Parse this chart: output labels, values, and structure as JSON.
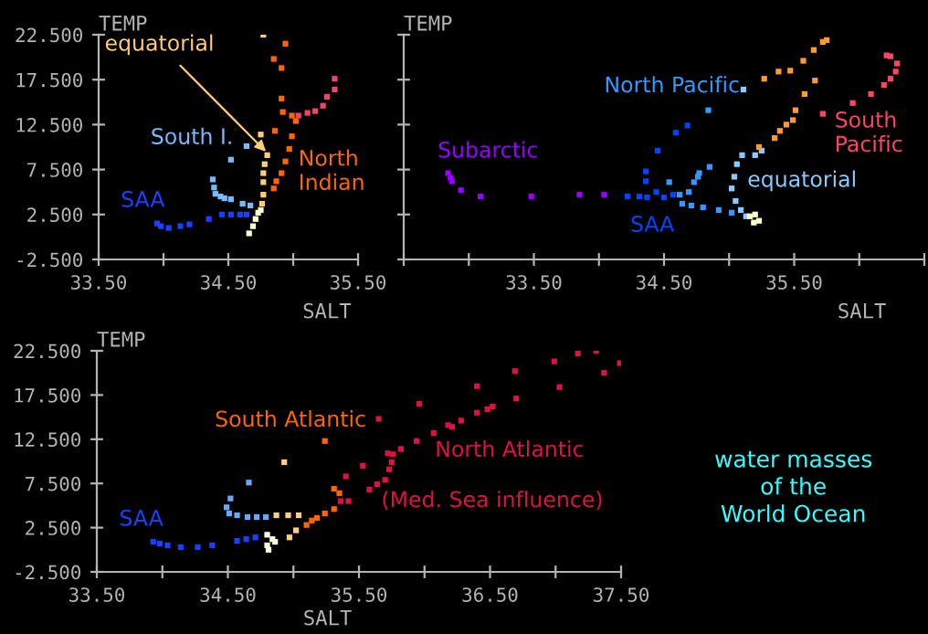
{
  "chart_data": [
    {
      "type": "scatter",
      "xlabel": "SALT",
      "ylabel": "TEMP",
      "marker": "square",
      "grid": false,
      "legend": false,
      "xlim": [
        33.5,
        35.5
      ],
      "xticks": [
        {
          "value": 33.5,
          "label": "33.50"
        },
        {
          "value": 34.0,
          "label": null
        },
        {
          "value": 34.5,
          "label": "34.50"
        },
        {
          "value": 35.0,
          "label": null
        },
        {
          "value": 35.5,
          "label": "35.50"
        }
      ],
      "ylim": [
        -2.5,
        22.5
      ],
      "yticks": [
        {
          "value": -2.5,
          "label": "-2.500"
        },
        {
          "value": 2.5,
          "label": "2.500"
        },
        {
          "value": 7.5,
          "label": "7.500"
        },
        {
          "value": 12.5,
          "label": "12.500"
        },
        {
          "value": 17.5,
          "label": "17.500"
        },
        {
          "value": 22.5,
          "label": "22.500"
        }
      ],
      "series": [
        {
          "color": "#ffcc77",
          "x": [
            34.76,
            34.77,
            34.77,
            34.77,
            34.78,
            34.8,
            34.75,
            34.77
          ],
          "values": [
            3.7,
            4.7,
            6.1,
            7.1,
            8.1,
            9.1,
            11.4,
            22.5
          ]
        },
        {
          "color": "#77bbff",
          "x": [
            34.38,
            34.39,
            34.4,
            34.44,
            34.47,
            34.52,
            34.61,
            34.67,
            34.52,
            34.64
          ],
          "values": [
            6.4,
            5.5,
            4.8,
            4.5,
            4.3,
            4.2,
            3.7,
            3.5,
            8.6,
            10.1
          ]
        },
        {
          "color": "#1a40ff",
          "x": [
            33.95,
            33.98,
            34.04,
            34.13,
            34.2,
            34.35,
            34.45,
            34.52,
            34.59,
            34.64
          ],
          "values": [
            1.5,
            1.2,
            1.0,
            1.2,
            1.4,
            2.0,
            2.5,
            2.5,
            2.5,
            2.5
          ]
        },
        {
          "color": "#ff6600",
          "x": [
            34.85,
            34.87,
            34.91,
            34.94,
            34.97,
            34.99,
            35.02,
            34.99,
            34.92,
            34.91,
            34.91,
            34.85,
            34.94,
            34.86
          ],
          "values": [
            5.4,
            6.2,
            7.1,
            8.4,
            9.8,
            11.2,
            12.9,
            13.5,
            13.9,
            15.4,
            18.8,
            19.8,
            21.5,
            11.8
          ]
        },
        {
          "color": "#ffffcc",
          "x": [
            34.66,
            34.69,
            34.71,
            34.73,
            34.75
          ],
          "values": [
            0.4,
            1.2,
            2.0,
            2.7,
            3.0
          ]
        },
        {
          "color": "#ee4466",
          "x": [
            35.04,
            35.11,
            35.17,
            35.23,
            35.26,
            35.32,
            35.32
          ],
          "values": [
            13.5,
            13.8,
            14.0,
            14.6,
            15.6,
            16.4,
            17.6
          ]
        }
      ],
      "annotations": [
        {
          "text": "equatorial",
          "x": 34.79,
          "y": 9.5
        },
        "South I.",
        "SAA",
        "North\nIndian"
      ]
    },
    {
      "type": "scatter",
      "xlabel": "SALT",
      "ylabel": "TEMP",
      "marker": "square",
      "grid": false,
      "legend": false,
      "tick_labels": "x",
      "xlim": [
        32.5,
        36.5
      ],
      "xticks": [
        {
          "value": 32.5,
          "label": null
        },
        {
          "value": 33.0,
          "label": null
        },
        {
          "value": 33.5,
          "label": "33.50"
        },
        {
          "value": 34.0,
          "label": null
        },
        {
          "value": 34.5,
          "label": "34.50"
        },
        {
          "value": 35.0,
          "label": null
        },
        {
          "value": 35.5,
          "label": "35.50"
        },
        {
          "value": 36.0,
          "label": null
        },
        {
          "value": 36.5,
          "label": null
        }
      ],
      "ylim": [
        -2.5,
        22.5
      ],
      "yticks": [
        {
          "value": -2.5,
          "label": null
        },
        {
          "value": 2.5,
          "label": null
        },
        {
          "value": 7.5,
          "label": null
        },
        {
          "value": 12.5,
          "label": null
        },
        {
          "value": 17.5,
          "label": null
        },
        {
          "value": 22.5,
          "label": null
        }
      ],
      "series": [
        {
          "color": "#9900ff",
          "x": [
            32.84,
            32.86,
            32.87,
            32.94,
            33.09,
            33.48,
            33.85,
            34.04
          ],
          "values": [
            7.1,
            6.6,
            6.2,
            5.2,
            4.5,
            4.5,
            4.7,
            4.7
          ]
        },
        {
          "color": "#3399ff",
          "x": [
            34.54,
            34.57,
            34.62,
            34.69,
            34.73,
            34.76,
            34.77,
            34.85,
            34.84,
            34.64,
            34.71,
            34.8,
            34.92,
            35.02
          ],
          "values": [
            6.1,
            null,
            4.7,
            5.0,
            6.1,
            6.7,
            7.1,
            7.8,
            14.1,
            3.7,
            3.5,
            3.3,
            3.0,
            2.7
          ]
        },
        {
          "color": "#ff4466",
          "x": [
            35.72,
            35.95,
            36.09,
            36.19,
            36.24,
            36.28,
            36.29,
            36.24,
            36.21
          ],
          "values": [
            13.7,
            14.9,
            15.9,
            16.9,
            17.6,
            18.4,
            19.3,
            20.1,
            20.2
          ]
        },
        {
          "color": "#88ccff",
          "x": [
            35.13,
            35.09,
            35.05,
            35.02,
            35.04,
            35.06,
            35.1,
            35.11,
            35.2,
            35.25
          ],
          "values": [
            2.3,
            3.0,
            4.0,
            5.4,
            6.7,
            8.1,
            9.1,
            16.4,
            9.1,
            9.6
          ]
        },
        {
          "color": "#0044ff",
          "x": [
            34.22,
            34.31,
            34.37,
            34.44,
            34.36,
            34.36,
            34.45,
            34.59,
            34.68,
            34.5,
            34.57
          ],
          "values": [
            4.5,
            4.5,
            4.4,
            5.0,
            6.2,
            7.3,
            9.6,
            11.6,
            12.4,
            4.4,
            4.7
          ]
        },
        {
          "color": "#ffffcc",
          "x": [
            35.16,
            35.2,
            35.23,
            35.19
          ],
          "values": [
            2.3,
            2.5,
            1.8,
            1.6
          ]
        },
        {
          "color": "#ff9933",
          "x": [
            35.35,
            35.39,
            35.44,
            35.49,
            35.51,
            35.58,
            35.66,
            35.27,
            35.38,
            35.47,
            35.57,
            35.65,
            35.72,
            35.75,
            35.23
          ],
          "values": [
            11.0,
            11.8,
            12.5,
            13.0,
            14.1,
            15.9,
            17.4,
            17.6,
            18.4,
            18.5,
            19.6,
            20.8,
            21.7,
            21.9,
            10.0
          ]
        }
      ],
      "annotations": [
        "Subarctic",
        "North Pacific",
        "South\nPacific",
        "equatorial",
        "SAA"
      ]
    },
    {
      "type": "scatter",
      "xlabel": "SALT",
      "ylabel": "TEMP",
      "marker": "square",
      "grid": false,
      "legend": false,
      "xlim": [
        33.5,
        37.5
      ],
      "xticks": [
        {
          "value": 33.5,
          "label": "33.50"
        },
        {
          "value": 34.0,
          "label": null
        },
        {
          "value": 34.5,
          "label": "34.50"
        },
        {
          "value": 35.0,
          "label": null
        },
        {
          "value": 35.5,
          "label": "35.50"
        },
        {
          "value": 36.0,
          "label": null
        },
        {
          "value": 36.5,
          "label": "36.50"
        },
        {
          "value": 37.0,
          "label": null
        },
        {
          "value": 37.5,
          "label": "37.50"
        }
      ],
      "ylim": [
        -2.5,
        22.5
      ],
      "yticks": [
        {
          "value": -2.5,
          "label": "-2.500"
        },
        {
          "value": 2.5,
          "label": "2.500"
        },
        {
          "value": 7.5,
          "label": "7.500"
        },
        {
          "value": 12.5,
          "label": "12.500"
        },
        {
          "value": 17.5,
          "label": "17.500"
        },
        {
          "value": 22.5,
          "label": "22.500"
        }
      ],
      "series": [
        {
          "color": "#1a40ff",
          "x": [
            33.93,
            33.98,
            34.04,
            34.14,
            34.27,
            34.38,
            34.57,
            34.64,
            34.71
          ],
          "values": [
            0.9,
            0.7,
            0.5,
            0.3,
            0.3,
            0.5,
            1.0,
            1.2,
            1.4
          ]
        },
        {
          "color": "#ff6600",
          "x": [
            35.1,
            35.14,
            35.18,
            35.24,
            35.31,
            35.31,
            35.24,
            35.35
          ],
          "values": [
            2.8,
            3.3,
            3.6,
            4.1,
            4.6,
            6.9,
            12.3,
            6.4
          ]
        },
        {
          "color": "#dd1144",
          "x": [
            35.36,
            35.42,
            35.4,
            35.53,
            35.58,
            35.64,
            35.7,
            35.73,
            35.75,
            35.76,
            35.72,
            35.65,
            35.82,
            35.94,
            35.96,
            36.07,
            36.18,
            36.21,
            36.28,
            36.4,
            36.4,
            36.48,
            36.52,
            36.69,
            36.7,
            36.99,
            37.03,
            37.17,
            37.31,
            37.37,
            37.49
          ],
          "values": [
            5.5,
            5.5,
            8.3,
            9.5,
            6.8,
            7.4,
            7.9,
            9.1,
            9.9,
            10.8,
            10.9,
            14.8,
            11.4,
            12.3,
            16.5,
            13.2,
            14.1,
            13.9,
            14.6,
            18.5,
            15.5,
            15.9,
            16.2,
            20.2,
            17.1,
            21.3,
            18.4,
            22.2,
            22.5,
            20.0,
            21.1
          ]
        },
        {
          "color": "#66aaff",
          "x": [
            34.49,
            34.52,
            34.51,
            34.57,
            34.66,
            34.65,
            34.72,
            34.79
          ],
          "values": [
            4.8,
            5.8,
            4.1,
            3.9,
            7.6,
            3.7,
            3.7,
            3.7
          ]
        },
        {
          "color": "#ffffdd",
          "x": [
            34.8,
            34.84,
            34.86,
            34.81,
            34.8
          ],
          "values": [
            1.7,
            1.2,
            0.9,
            0.0,
            0.5
          ]
        },
        {
          "color": "#ffcc88",
          "x": [
            34.87,
            34.96,
            35.04,
            34.93,
            34.97,
            35.02
          ],
          "values": [
            3.9,
            3.9,
            3.9,
            9.9,
            1.4,
            2.2
          ]
        }
      ],
      "annotations": [
        "SAA",
        "South Atlantic",
        "North Atlantic",
        "(Med. Sea influence)",
        "water masses\nof the\nWorld Ocean"
      ]
    }
  ]
}
